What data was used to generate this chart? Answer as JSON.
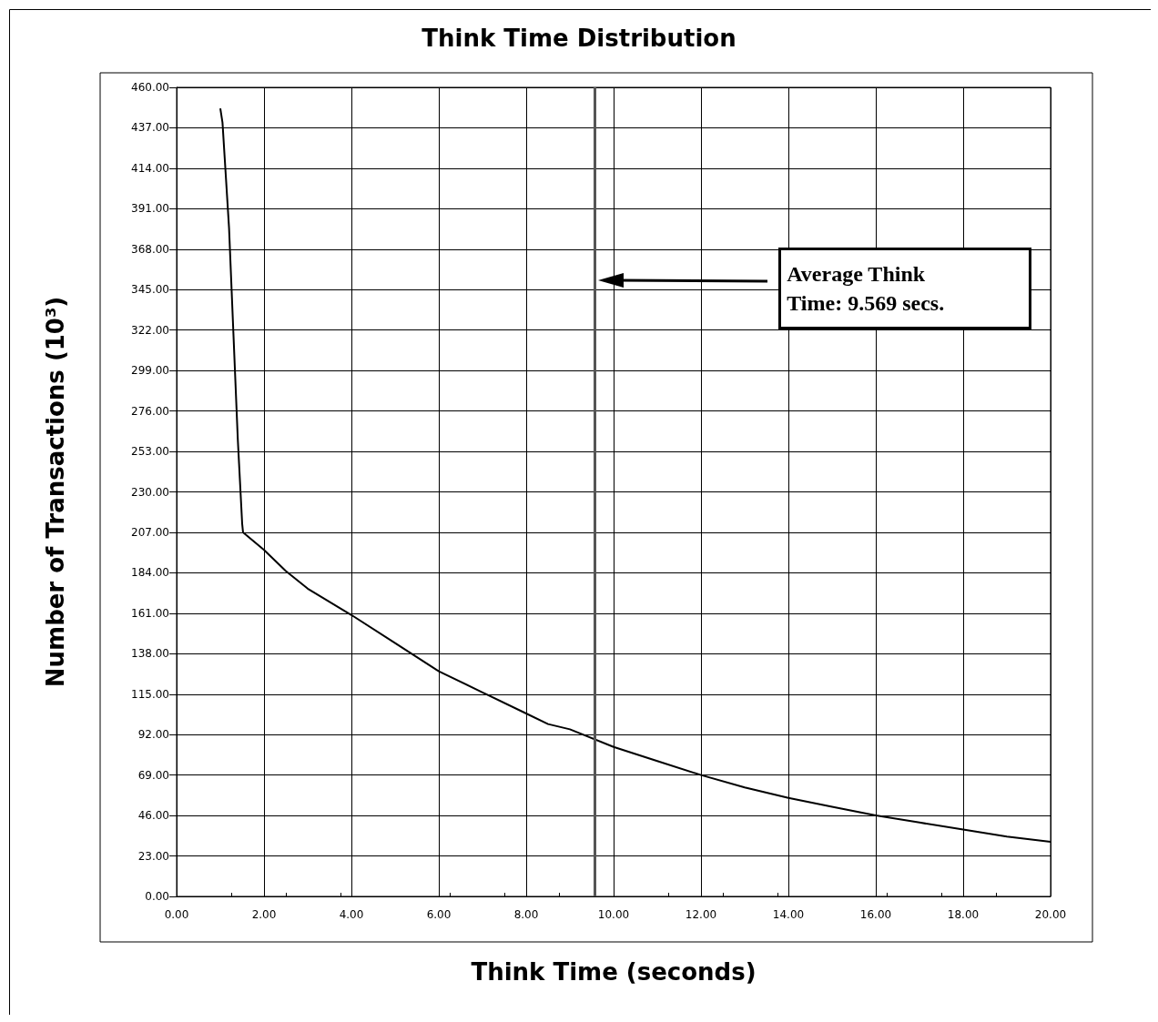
{
  "chart_data": {
    "type": "line",
    "title": "Think Time Distribution",
    "xlabel": "Think Time (seconds)",
    "ylabel": "Number of Transactions (10³)",
    "x": [
      1.0,
      1.05,
      1.1,
      1.2,
      1.3,
      1.4,
      1.5,
      1.52,
      2.0,
      2.5,
      3.0,
      4.0,
      5.0,
      6.0,
      7.0,
      8.0,
      8.5,
      9.0,
      10.0,
      11.0,
      12.0,
      13.0,
      14.0,
      15.0,
      16.0,
      17.0,
      18.0,
      19.0,
      20.0
    ],
    "series": [
      {
        "color": "#000000",
        "values": [
          448,
          440,
          420,
          380,
          320,
          260,
          212,
          207,
          197,
          185,
          175,
          160,
          144,
          128,
          116,
          104,
          98,
          95,
          85,
          77,
          69,
          62,
          56,
          51,
          46,
          42,
          38,
          34,
          31
        ]
      }
    ],
    "xlim": [
      0,
      20
    ],
    "xticks": [
      {
        "value": 0,
        "label": "0.00"
      },
      {
        "value": 2,
        "label": "2.00"
      },
      {
        "value": 4,
        "label": "4.00"
      },
      {
        "value": 6,
        "label": "6.00"
      },
      {
        "value": 8,
        "label": "8.00"
      },
      {
        "value": 10,
        "label": "10.00"
      },
      {
        "value": 12,
        "label": "12.00"
      },
      {
        "value": 14,
        "label": "14.00"
      },
      {
        "value": 16,
        "label": "16.00"
      },
      {
        "value": 18,
        "label": "18.00"
      },
      {
        "value": 20,
        "label": "20.00"
      }
    ],
    "ylim": [
      0,
      460
    ],
    "yticks": [
      {
        "value": 0,
        "label": "0.00"
      },
      {
        "value": 23,
        "label": "23.00"
      },
      {
        "value": 46,
        "label": "46.00"
      },
      {
        "value": 69,
        "label": "69.00"
      },
      {
        "value": 92,
        "label": "92.00"
      },
      {
        "value": 115,
        "label": "115.00"
      },
      {
        "value": 138,
        "label": "138.00"
      },
      {
        "value": 161,
        "label": "161.00"
      },
      {
        "value": 184,
        "label": "184.00"
      },
      {
        "value": 207,
        "label": "207.00"
      },
      {
        "value": 230,
        "label": "230.00"
      },
      {
        "value": 253,
        "label": "253.00"
      },
      {
        "value": 276,
        "label": "276.00"
      },
      {
        "value": 299,
        "label": "299.00"
      },
      {
        "value": 322,
        "label": "322.00"
      },
      {
        "value": 345,
        "label": "345.00"
      },
      {
        "value": 368,
        "label": "368.00"
      },
      {
        "value": 391,
        "label": "391.00"
      },
      {
        "value": 414,
        "label": "414.00"
      },
      {
        "value": 437,
        "label": "437.00"
      },
      {
        "value": 460,
        "label": "460.00"
      }
    ],
    "ref_lines": [
      {
        "axis": "x",
        "value": 9.569,
        "color": "#555555"
      }
    ],
    "annotations": [
      "Average Think\nTime: 9.569 secs."
    ],
    "grid": true,
    "marker": "none",
    "line_style": "solid"
  }
}
